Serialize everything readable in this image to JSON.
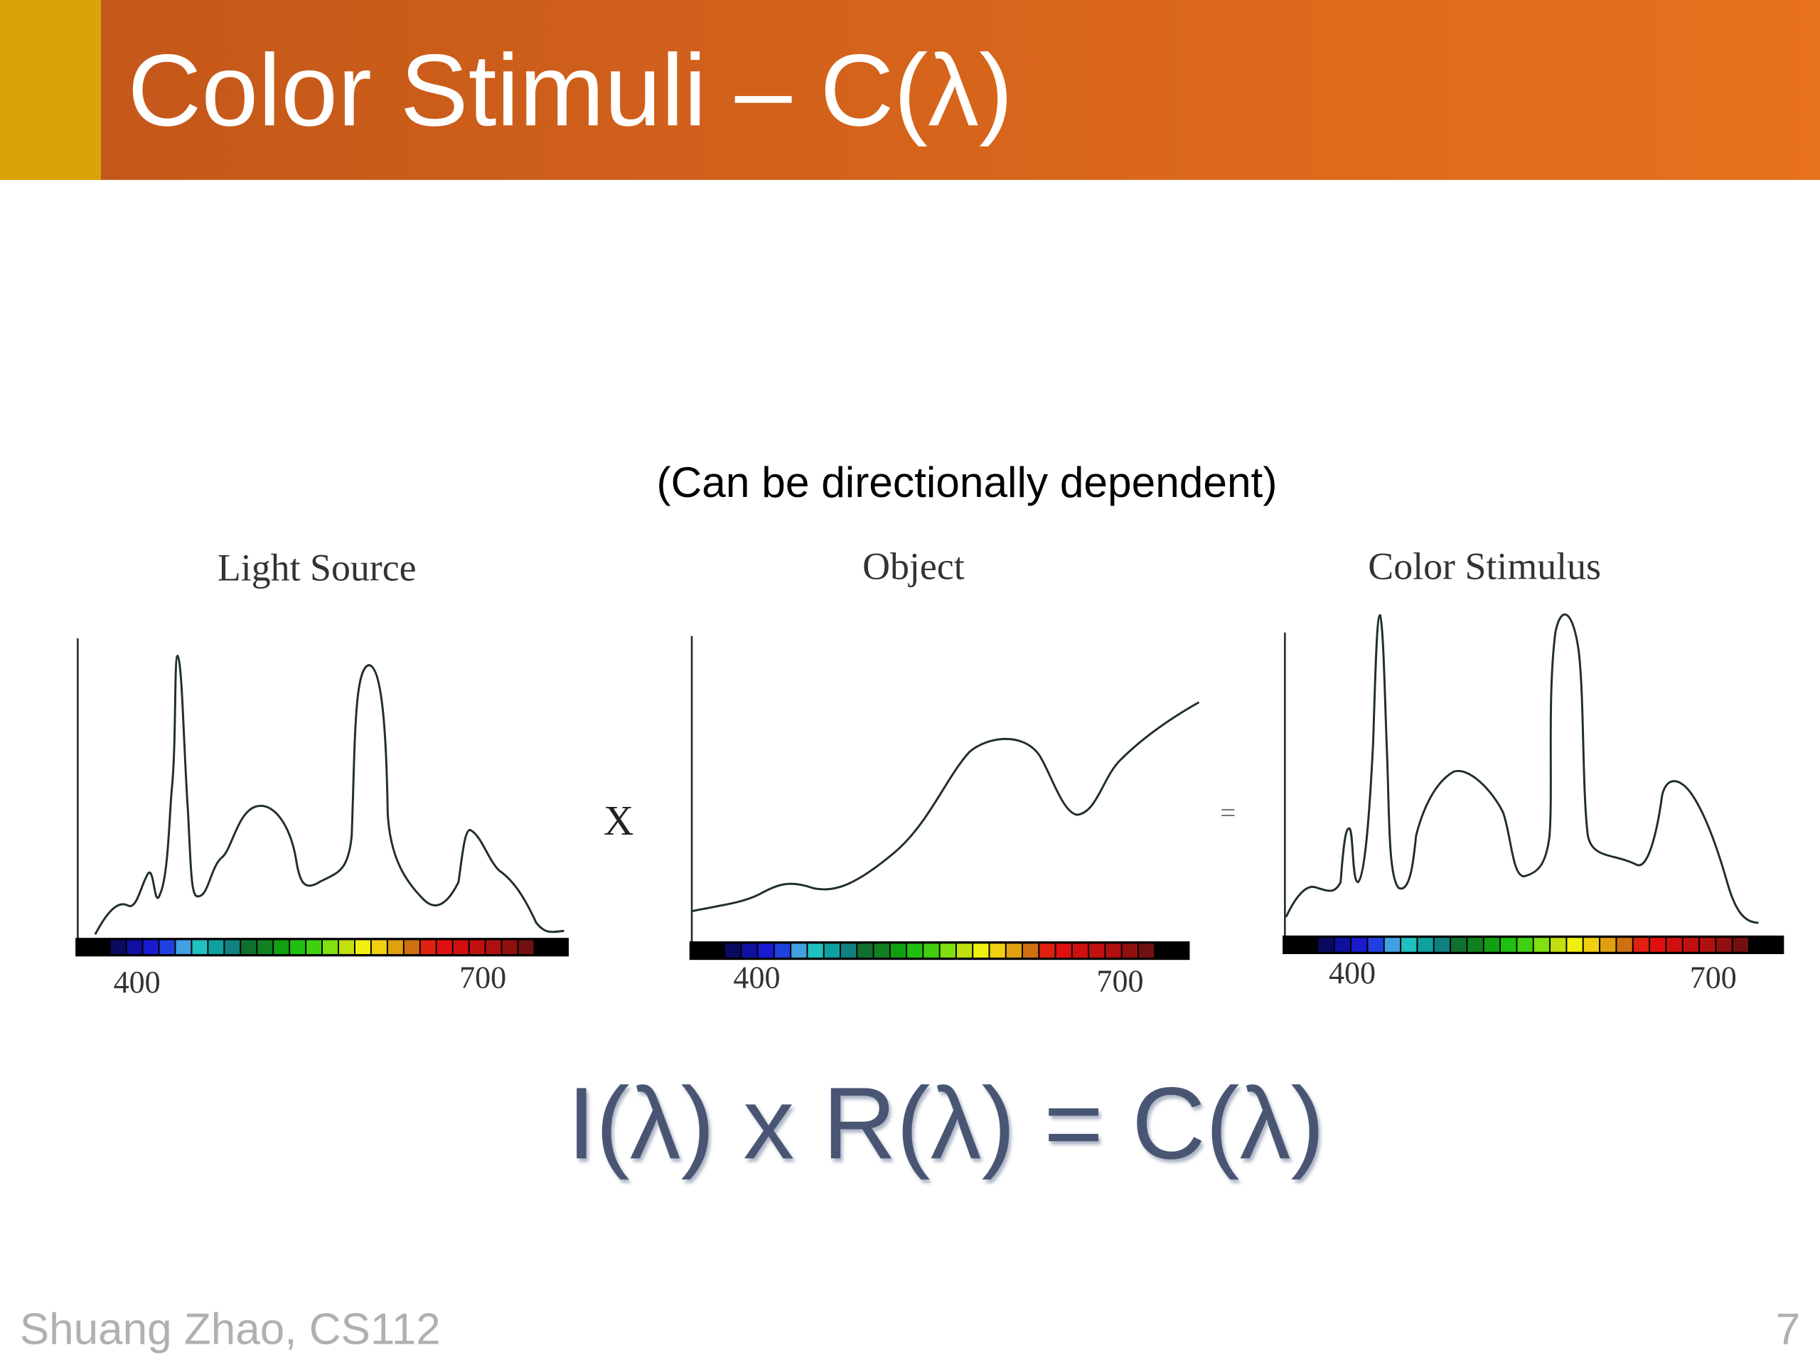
{
  "header": {
    "title": "Color Stimuli – C(λ)"
  },
  "subtitle": "(Can be directionally dependent)",
  "panels": [
    {
      "label": "Light Source",
      "tick_start": "400",
      "tick_end": "700"
    },
    {
      "label": "Object",
      "tick_start": "400",
      "tick_end": "700"
    },
    {
      "label": "Color Stimulus",
      "tick_start": "400",
      "tick_end": "700"
    }
  ],
  "operators": {
    "multiply": "X",
    "equals": "="
  },
  "equation": "I(λ) x R(λ) = C(λ)",
  "footer": {
    "author": "Shuang Zhao, CS112",
    "page": "7"
  }
}
